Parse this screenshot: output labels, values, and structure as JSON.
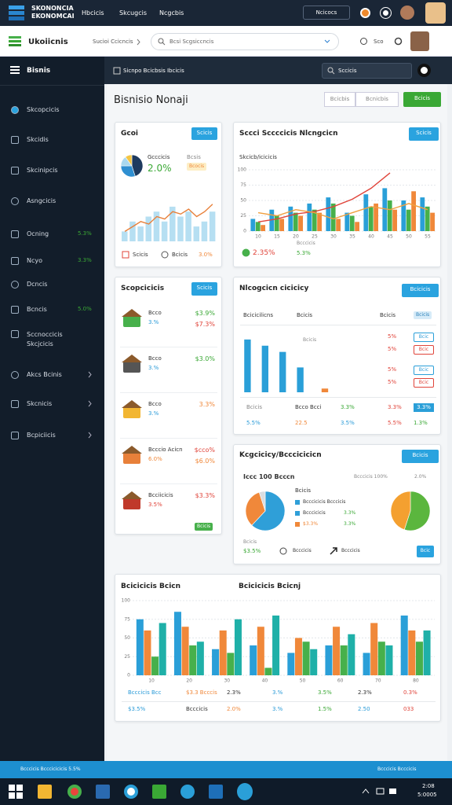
{
  "topbar": {
    "brand": [
      "SKONONCIA",
      "EKONOMCAI"
    ],
    "nav": [
      "Hbcicis",
      "Skcugcis",
      "Ncgcbis"
    ],
    "button": "Ncicocs"
  },
  "appbar": {
    "brand": "Ukoiicnis",
    "crumb": "Sucioi Ccicncis",
    "search": "Bcsi Scgsiccncis",
    "link": "Sco"
  },
  "sidebar": {
    "title": "Bisnis",
    "items": [
      {
        "label": "Skcopcicis"
      },
      {
        "label": "Skcidis"
      },
      {
        "label": "Skcinipcis"
      },
      {
        "label": "Asngcicis"
      },
      {
        "label": "Ocning",
        "value": "5.3%"
      },
      {
        "label": "Ncyo",
        "value": "3.3%"
      },
      {
        "label": "Dcncis"
      },
      {
        "label": "Bcncis",
        "value": "5.0%"
      },
      {
        "label": "Sccnoccicis Skcjcicis"
      },
      {
        "label": "Akcs Bcinis"
      },
      {
        "label": "Skcnicis"
      },
      {
        "label": "Bcpiciicis"
      }
    ]
  },
  "header": {
    "crumb": "Sicnpo Bcicbsis Ibcicis",
    "search": "Sccicis"
  },
  "page": {
    "title": "Bisnisio Nonaji",
    "buttons": [
      "Bcicbis",
      "Bcnicbis",
      "Bcicis"
    ]
  },
  "overview": {
    "title": "Gcoi",
    "button": "Scicis",
    "pie": {
      "type": "pie",
      "values": [
        45,
        30,
        15,
        10
      ],
      "colors": [
        "#1e3a5f",
        "#2f8fd1",
        "#a9d8ef",
        "#f4c542"
      ]
    },
    "pie_label": "Gcccicis",
    "pie_value": "2.0%",
    "side_label": "Bcsis",
    "side_tag": "Bcocis",
    "chart": {
      "type": "bar",
      "ylim": [
        0,
        10
      ],
      "series": [
        {
          "color": "#b6dff2",
          "values": [
            2,
            4,
            3,
            5,
            6,
            4,
            7,
            5,
            6,
            3,
            4,
            6
          ]
        },
        {
          "type": "line",
          "color": "#e8803a",
          "values": [
            2,
            3,
            4,
            3.5,
            5,
            4.5,
            6,
            5.5,
            6.5,
            5,
            6,
            7.5
          ]
        }
      ]
    },
    "footer": [
      "Scicis",
      "Bcicis",
      "3.0%"
    ]
  },
  "sales": {
    "title": "Sccci Sccccicis Nlcngcicn",
    "button": "Scicis",
    "subtitle": "Skcicb/icicicis",
    "chart": {
      "type": "bar",
      "ylim": [
        0,
        100
      ],
      "yticks": [
        0,
        25,
        50,
        75,
        100
      ],
      "grid": true,
      "categories": [
        "10",
        "15",
        "20",
        "25",
        "30",
        "35",
        "40",
        "45",
        "50",
        "55"
      ],
      "series": [
        {
          "color": "#2a9fd8",
          "values": [
            20,
            35,
            40,
            45,
            55,
            30,
            60,
            70,
            50,
            55
          ]
        },
        {
          "color": "#47b04b",
          "values": [
            15,
            25,
            30,
            35,
            45,
            25,
            40,
            50,
            35,
            40
          ]
        },
        {
          "color": "#f0883a",
          "values": [
            10,
            20,
            25,
            30,
            20,
            15,
            45,
            35,
            65,
            30
          ]
        },
        {
          "type": "line",
          "color": "#e0443a",
          "values": [
            15,
            20,
            28,
            32,
            40,
            52,
            70,
            95,
            null,
            null
          ]
        },
        {
          "type": "line",
          "color": "#f0a040",
          "values": [
            30,
            25,
            35,
            30,
            20,
            30,
            40,
            35,
            45,
            35
          ]
        }
      ]
    },
    "footer": {
      "value": "2.35%",
      "label": "Bcccicis",
      "change": "5.3%"
    }
  },
  "products": {
    "title": "Scopcicicis",
    "button": "Scicis",
    "items": [
      {
        "name": "Bcco",
        "sub": "3.%",
        "value": "$3.9%",
        "delta": "$7.3%"
      },
      {
        "name": "Bcco",
        "sub": "3.%",
        "value": "$3.0%"
      },
      {
        "name": "Bcco",
        "sub": "3.%",
        "value": "3.3%"
      },
      {
        "name": "Bcccio Acicn",
        "sub": "6.0%",
        "value": "$cco%",
        "delta": "$6.0%"
      },
      {
        "name": "Bcciicicis",
        "sub": "3.5%",
        "value": "$3.3%"
      }
    ],
    "tag": "Bcicis"
  },
  "monitor": {
    "title": "Nlcogcicn cicicicy",
    "button": "Bcicicis",
    "headers": [
      "Bcicicilicns",
      "Bcicis",
      "Bcicis",
      "Bcicis"
    ],
    "chart": {
      "type": "bar",
      "ylim": [
        0,
        100
      ],
      "series": [
        {
          "color": "#2a9fd8",
          "values": [
            85,
            75,
            65,
            40,
            null
          ]
        },
        {
          "color": "#f0883a",
          "values": [
            null,
            null,
            null,
            null,
            6
          ]
        }
      ]
    },
    "note": "Bcicis",
    "rows": [
      {
        "value": "5%",
        "badge": "Bcic"
      },
      {
        "value": "5%",
        "badge": "Bcic"
      },
      {
        "value": "5%",
        "badge": "Bcic"
      },
      {
        "value": "5%",
        "badge": "Bcic"
      }
    ],
    "footer": [
      [
        "Bcicis",
        "Bcco Bcci",
        "3.3%",
        "3.3%",
        "3.3%"
      ],
      [
        "5.5%",
        "22.5",
        "3.5%",
        "5.5%",
        "1.3%"
      ]
    ]
  },
  "distribution": {
    "title": "Kcgcicicy/Bcccicicicn",
    "button": "Bcicis",
    "heading": "Iccc 100 Bcccn",
    "meta": [
      "Bcccicis 100%",
      "2.0%"
    ],
    "pie1": {
      "type": "pie",
      "values": [
        62,
        33,
        5
      ],
      "colors": [
        "#2f9fd8",
        "#f0883a",
        "#d9dde1"
      ]
    },
    "pie2": {
      "type": "pie",
      "values": [
        55,
        45
      ],
      "colors": [
        "#5bb63e",
        "#f4a030"
      ]
    },
    "legend": {
      "title": "Bcicis",
      "rows": [
        {
          "label": "Bcccicicis Bcccicis"
        },
        {
          "label": "Bcccicicis",
          "value": "3.3%"
        },
        {
          "label": "$3.3%",
          "value": "3.3%"
        }
      ]
    },
    "footer": {
      "label": "Bcicis",
      "value": "$3.5%",
      "links": [
        "Bcccicis",
        "Bcccicis"
      ],
      "button": "Bcic"
    }
  },
  "summary": {
    "titles": [
      "Bcicicicis Bcicn",
      "Bcicicicis Bcicnj"
    ],
    "chart": {
      "type": "bar",
      "ylim": [
        0,
        100
      ],
      "yticks": [
        0,
        25,
        50,
        75,
        100
      ],
      "grid": true,
      "categories": [
        "10",
        "20",
        "30",
        "40",
        "50",
        "60",
        "70",
        "80"
      ],
      "series": [
        {
          "color": "#2a9fd8",
          "values": [
            75,
            85,
            35,
            40,
            30,
            40,
            30,
            80
          ]
        },
        {
          "color": "#f0883a",
          "values": [
            60,
            65,
            60,
            65,
            50,
            65,
            70,
            60
          ]
        },
        {
          "color": "#47b04b",
          "values": [
            25,
            40,
            30,
            10,
            45,
            40,
            45,
            45
          ]
        },
        {
          "color": "#1fb0a8",
          "values": [
            70,
            45,
            75,
            80,
            35,
            55,
            40,
            60
          ]
        }
      ]
    },
    "rows": [
      {
        "label": "Bcccicis Bcc",
        "cells": [
          "$3.3 Bcccis",
          "2.3%",
          "3.%",
          "3.5%",
          "2.3%",
          "0.3%"
        ]
      },
      {
        "label": "$3.5%",
        "cells": [
          "Bcccicis",
          "2.0%",
          "3.%",
          "1.5%",
          "2.50",
          "033"
        ]
      }
    ]
  },
  "statusbar": [
    "Bcccicis Bcccicicicis 5.5%",
    "Bcccicis Bcccicis"
  ],
  "taskbar": {
    "clock": [
      "2:08",
      "5:0005"
    ]
  }
}
